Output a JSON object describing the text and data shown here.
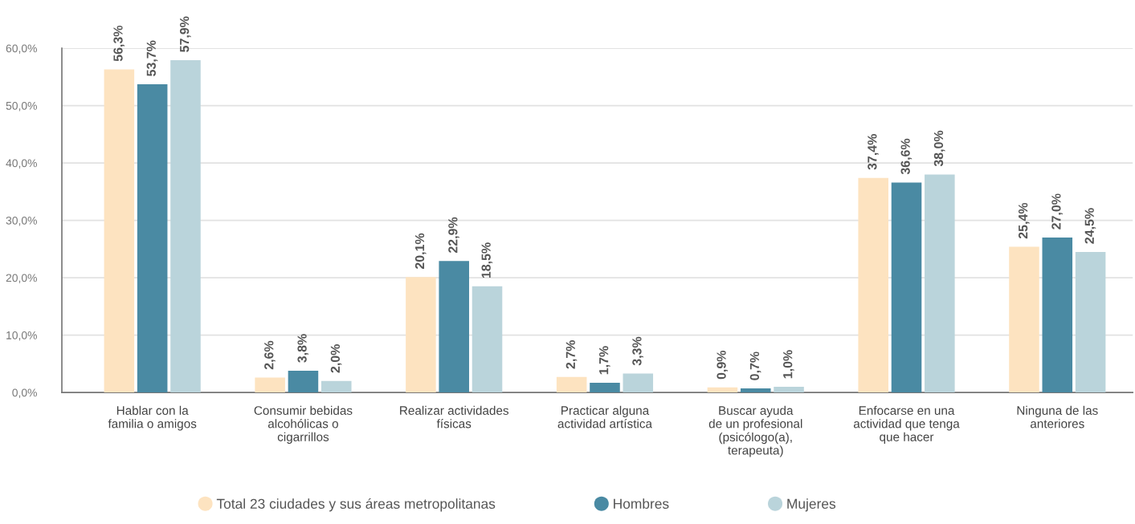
{
  "chart_data": {
    "type": "bar",
    "categories": [
      "Hablar con la\nfamilia o amigos",
      "Consumir bebidas\nalcohólicas o\ncigarrillos",
      "Realizar actividades\nfísicas",
      "Practicar alguna\nactividad artística",
      "Buscar ayuda\nde un profesional\n(psicólogo(a),\nterapeuta)",
      "Enfocarse en una\nactividad que tenga\nque hacer",
      "Ninguna de las\nanteriores"
    ],
    "series": [
      {
        "name": "Total 23 ciudades y sus áreas metropolitanas",
        "color": "#fde3c0",
        "values": [
          56.3,
          2.6,
          20.1,
          2.7,
          0.9,
          37.4,
          25.4
        ],
        "value_labels": [
          "56,3%",
          "2,6%",
          "20,1%",
          "2,7%",
          "0,9%",
          "37,4%",
          "25,4%"
        ]
      },
      {
        "name": "Hombres",
        "color": "#4a8aa3",
        "values": [
          53.7,
          3.8,
          22.9,
          1.7,
          0.7,
          36.6,
          27.0
        ],
        "value_labels": [
          "53,7%",
          "3,8%",
          "22,9%",
          "1,7%",
          "0,7%",
          "36,6%",
          "27,0%"
        ]
      },
      {
        "name": "Mujeres",
        "color": "#bad4db",
        "values": [
          57.9,
          2.0,
          18.5,
          3.3,
          1.0,
          38.0,
          24.5
        ],
        "value_labels": [
          "57,9%",
          "2,0%",
          "18,5%",
          "3,3%",
          "1,0%",
          "38,0%",
          "24,5%"
        ]
      }
    ],
    "ylim": [
      0,
      60
    ],
    "yticks": [
      {
        "value": 0,
        "label": "0,0%"
      },
      {
        "value": 10,
        "label": "10,0%"
      },
      {
        "value": 20,
        "label": "20,0%"
      },
      {
        "value": 30,
        "label": "30,0%"
      },
      {
        "value": 40,
        "label": "40,0%"
      },
      {
        "value": 50,
        "label": "50,0%"
      },
      {
        "value": 60,
        "label": "60,0%"
      }
    ],
    "grid": "y",
    "legend": "bottom"
  }
}
